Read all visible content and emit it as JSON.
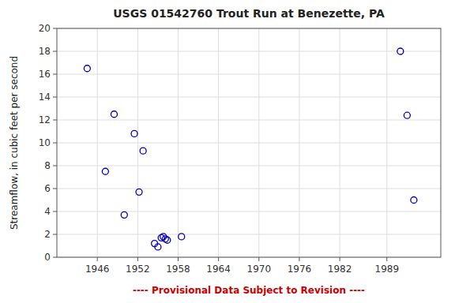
{
  "chart_data": {
    "type": "scatter",
    "title": "USGS 01542760 Trout Run at Benezette, PA",
    "y_label": "Streamflow, in cubic feet per second",
    "annotations": [
      "---- Provisional Data Subject to Revision ----"
    ],
    "x": [
      1944.5,
      1947.2,
      1948.5,
      1950.0,
      1951.5,
      1952.2,
      1952.8,
      1954.5,
      1955.0,
      1955.5,
      1955.8,
      1956.1,
      1956.4,
      1958.5,
      1991.0,
      1992.0,
      1993.0
    ],
    "values": [
      16.5,
      7.5,
      12.5,
      3.7,
      10.8,
      5.7,
      9.3,
      1.2,
      0.9,
      1.7,
      1.8,
      1.6,
      1.5,
      1.8,
      18.0,
      12.4,
      5.0
    ],
    "color": "#0000bb",
    "marker": "open-circle",
    "xlim": [
      1940,
      1997
    ],
    "ylim": [
      0,
      20
    ],
    "xticks": [
      1946,
      1952,
      1958,
      1964,
      1970,
      1976,
      1982,
      1989
    ],
    "yticks": [
      0,
      2,
      4,
      6,
      8,
      10,
      12,
      14,
      16,
      18,
      20
    ],
    "grid": true
  }
}
